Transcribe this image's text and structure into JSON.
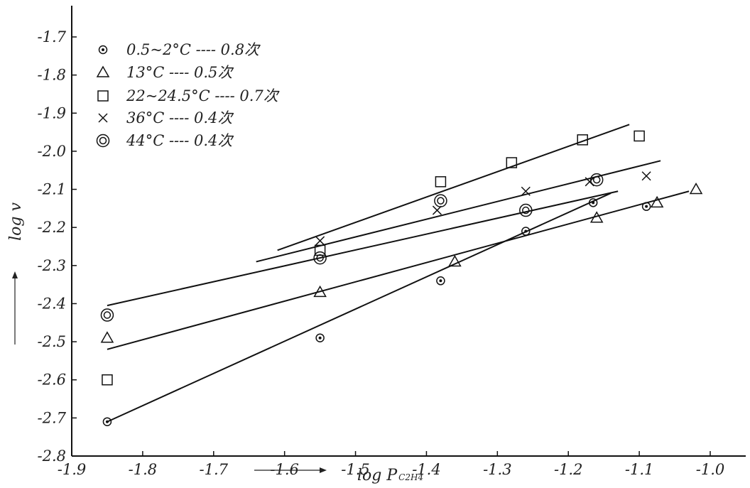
{
  "chart_data": {
    "type": "scatter",
    "title": "",
    "xlabel": "log P",
    "xlabel_subscript": "C2H4",
    "ylabel": "log v",
    "xlim": [
      -1.9,
      -0.95
    ],
    "ylim": [
      -2.8,
      -1.6
    ],
    "x_ticks": [
      -1.9,
      -1.8,
      -1.7,
      -1.6,
      -1.5,
      -1.4,
      -1.3,
      -1.2,
      -1.1,
      -1.0
    ],
    "x_tick_labels": [
      "-1.9",
      "-1.8",
      "-1.7",
      "-1.6",
      "-1.5",
      "-1.4",
      "-1.3",
      "-1.2",
      "-1.1",
      "-1.0"
    ],
    "y_ticks": [
      -2.8,
      -2.7,
      -2.6,
      -2.5,
      -2.4,
      -2.3,
      -2.2,
      -2.1,
      -2.0,
      -1.9,
      -1.8,
      -1.7
    ],
    "y_tick_labels": [
      "-2.8",
      "-2.7",
      "-2.6",
      "-2.5",
      "-2.4",
      "-2.3",
      "-2.2",
      "-2.1",
      "-2.0",
      "-1.9",
      "-1.8",
      "-1.7"
    ],
    "grid": false,
    "legend_position": "top-left",
    "series": [
      {
        "name": "0.5~2°C ---- 0.8次",
        "marker": "dot-circle",
        "points": [
          [
            -1.85,
            -2.71
          ],
          [
            -1.55,
            -2.49
          ],
          [
            -1.38,
            -2.34
          ],
          [
            -1.26,
            -2.21
          ],
          [
            -1.165,
            -2.135
          ],
          [
            -1.09,
            -2.145
          ]
        ],
        "fit": [
          [
            -1.85,
            -2.71
          ],
          [
            -1.14,
            -2.11
          ]
        ]
      },
      {
        "name": "13°C ---- 0.5次",
        "marker": "triangle",
        "points": [
          [
            -1.85,
            -2.49
          ],
          [
            -1.55,
            -2.37
          ],
          [
            -1.36,
            -2.29
          ],
          [
            -1.16,
            -2.175
          ],
          [
            -1.075,
            -2.135
          ],
          [
            -1.02,
            -2.1
          ]
        ],
        "fit": [
          [
            -1.85,
            -2.52
          ],
          [
            -1.03,
            -2.105
          ]
        ]
      },
      {
        "name": "22~24.5°C ---- 0.7次",
        "marker": "square",
        "points": [
          [
            -1.85,
            -2.6
          ],
          [
            -1.55,
            -2.26
          ],
          [
            -1.38,
            -2.08
          ],
          [
            -1.28,
            -2.03
          ],
          [
            -1.18,
            -1.97
          ],
          [
            -1.1,
            -1.96
          ]
        ],
        "fit": [
          [
            -1.61,
            -2.26
          ],
          [
            -1.114,
            -1.93
          ]
        ]
      },
      {
        "name": "36°C ---- 0.4次",
        "marker": "cross",
        "points": [
          [
            -1.55,
            -2.235
          ],
          [
            -1.385,
            -2.155
          ],
          [
            -1.26,
            -2.105
          ],
          [
            -1.17,
            -2.08
          ],
          [
            -1.09,
            -2.065
          ]
        ],
        "fit": [
          [
            -1.64,
            -2.29
          ],
          [
            -1.07,
            -2.025
          ]
        ]
      },
      {
        "name": "44°C ---- 0.4次",
        "marker": "double-circle",
        "points": [
          [
            -1.85,
            -2.43
          ],
          [
            -1.55,
            -2.28
          ],
          [
            -1.38,
            -2.13
          ],
          [
            -1.26,
            -2.155
          ],
          [
            -1.16,
            -2.075
          ]
        ],
        "fit": [
          [
            -1.85,
            -2.405
          ],
          [
            -1.13,
            -2.105
          ]
        ]
      }
    ]
  }
}
